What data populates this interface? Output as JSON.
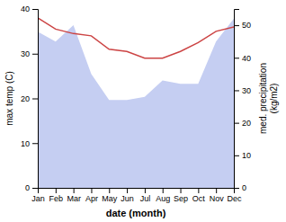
{
  "chart_data": {
    "type": "line",
    "xlabel": "date (month)",
    "ylabel": "max temp (C)",
    "y2label": "med. precipitation\n(kg/m2)",
    "categories": [
      "Jan",
      "Feb",
      "Mar",
      "Apr",
      "May",
      "Jun",
      "Jul",
      "Aug",
      "Sep",
      "Oct",
      "Nov",
      "Dec"
    ],
    "series": [
      {
        "type": "area",
        "axis": "y2",
        "color": "#c5cef2",
        "values": [
          48,
          45,
          50,
          35,
          27,
          27,
          28,
          33,
          32,
          32,
          45,
          52
        ]
      },
      {
        "type": "line",
        "color": "#cc4444",
        "values": [
          38.0,
          35.5,
          34.5,
          34.0,
          31.0,
          30.5,
          29.0,
          29.0,
          30.5,
          32.5,
          35.0,
          36.0
        ]
      }
    ],
    "ylim": [
      0,
      40
    ],
    "yticks": [
      0,
      10,
      20,
      30,
      40
    ],
    "y2lim": [
      0,
      55
    ],
    "y2ticks": [
      0,
      10,
      20,
      30,
      40,
      50
    ]
  }
}
